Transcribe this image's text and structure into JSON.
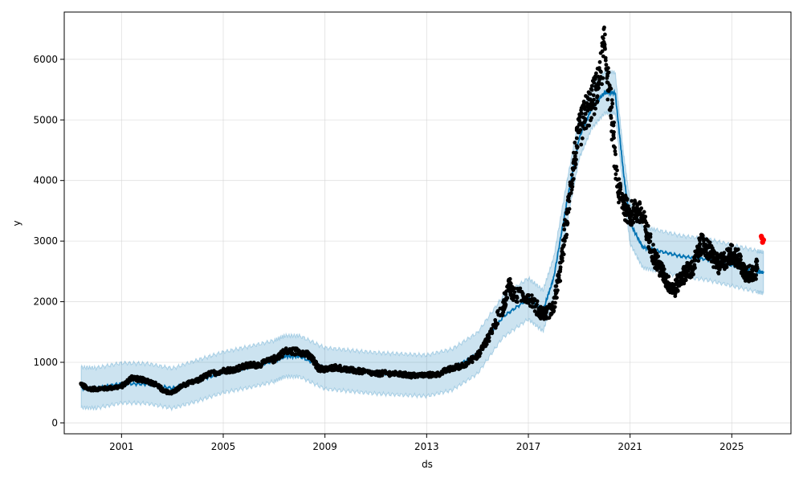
{
  "chart_data": {
    "type": "scatter",
    "title": "",
    "xlabel": "ds",
    "ylabel": "y",
    "x_axis": {
      "type": "date",
      "range": [
        "1998-10-01",
        "2027-05-01"
      ],
      "tick_values": [
        "2001-01-01",
        "2005-01-01",
        "2009-01-01",
        "2013-01-01",
        "2017-01-01",
        "2021-01-01",
        "2025-01-01"
      ],
      "tick_labels": [
        "2001",
        "2005",
        "2009",
        "2013",
        "2017",
        "2021",
        "2025"
      ]
    },
    "y_axis": {
      "range": [
        -180,
        6780
      ],
      "tick_values": [
        0,
        1000,
        2000,
        3000,
        4000,
        5000,
        6000
      ],
      "tick_labels": [
        "0",
        "1000",
        "2000",
        "3000",
        "4000",
        "5000",
        "6000"
      ]
    },
    "grid": true,
    "colors": {
      "observed": "#000000",
      "forecast_line": "#0072B2",
      "uncertainty_band": "#0072B2",
      "recent_points": "#ff0000",
      "grid": "#d3d3d3"
    },
    "series": [
      {
        "role": "observed",
        "style": "points",
        "x": [
          "1999-06-01",
          "1999-09-01",
          "2000-01-01",
          "2000-06-01",
          "2001-01-01",
          "2001-06-01",
          "2001-09-01",
          "2002-01-01",
          "2002-06-01",
          "2002-09-01",
          "2003-01-01",
          "2003-06-01",
          "2004-01-01",
          "2004-06-01",
          "2005-01-01",
          "2005-06-01",
          "2006-01-01",
          "2006-06-01",
          "2007-01-01",
          "2007-06-01",
          "2008-01-01",
          "2008-06-01",
          "2008-10-01",
          "2009-01-01",
          "2009-06-01",
          "2010-01-01",
          "2010-06-01",
          "2011-01-01",
          "2011-06-01",
          "2012-01-01",
          "2012-06-01",
          "2013-01-01",
          "2013-06-01",
          "2014-01-01",
          "2014-06-01",
          "2015-01-01",
          "2015-06-01",
          "2016-01-01",
          "2016-04-01",
          "2016-06-01",
          "2017-01-01",
          "2017-06-01",
          "2017-09-01",
          "2018-01-01",
          "2018-04-01",
          "2018-07-01",
          "2018-10-01",
          "2019-01-01",
          "2019-04-01",
          "2019-07-01",
          "2019-10-01",
          "2020-01-01",
          "2020-04-01",
          "2020-07-01",
          "2020-10-01",
          "2021-01-01",
          "2021-04-01",
          "2021-07-01",
          "2021-10-01",
          "2022-01-01",
          "2022-04-01",
          "2022-07-01",
          "2022-10-01",
          "2023-01-01",
          "2023-04-01",
          "2023-07-01",
          "2023-10-01",
          "2024-01-01",
          "2024-04-01",
          "2024-07-01",
          "2024-10-01",
          "2025-01-01",
          "2025-04-01",
          "2025-07-01",
          "2025-10-01",
          "2026-01-01"
        ],
        "y": [
          640,
          560,
          560,
          570,
          600,
          750,
          720,
          700,
          620,
          520,
          500,
          620,
          700,
          800,
          860,
          880,
          950,
          960,
          1050,
          1180,
          1180,
          1100,
          900,
          880,
          920,
          870,
          850,
          810,
          820,
          800,
          780,
          790,
          800,
          900,
          950,
          1100,
          1400,
          1900,
          2300,
          2100,
          2100,
          1850,
          1800,
          1900,
          2500,
          3300,
          4200,
          4800,
          5100,
          5300,
          5600,
          6200,
          5200,
          3900,
          3600,
          3450,
          3500,
          3400,
          3000,
          2700,
          2500,
          2300,
          2200,
          2400,
          2500,
          2550,
          2950,
          2900,
          2750,
          2600,
          2700,
          2800,
          2700,
          2500,
          2450,
          2550
        ]
      },
      {
        "role": "forecast",
        "style": "line_with_band",
        "x": [
          "1999-06-01",
          "2000-01-01",
          "2001-01-01",
          "2002-01-01",
          "2003-01-01",
          "2004-01-01",
          "2005-01-01",
          "2006-01-01",
          "2007-01-01",
          "2007-06-01",
          "2008-01-01",
          "2009-01-01",
          "2010-01-01",
          "2011-01-01",
          "2012-01-01",
          "2013-01-01",
          "2014-01-01",
          "2015-01-01",
          "2016-01-01",
          "2017-01-01",
          "2017-08-01",
          "2018-01-01",
          "2018-07-01",
          "2019-01-01",
          "2019-07-01",
          "2020-01-01",
          "2020-06-01",
          "2020-10-01",
          "2021-01-01",
          "2021-07-01",
          "2022-01-01",
          "2023-01-01",
          "2024-01-01",
          "2025-01-01",
          "2026-01-01",
          "2026-04-01"
        ],
        "yhat": [
          580,
          570,
          650,
          640,
          570,
          700,
          830,
          920,
          1020,
          1100,
          1100,
          900,
          860,
          820,
          800,
          780,
          880,
          1150,
          1750,
          2050,
          1850,
          2400,
          3600,
          4700,
          5200,
          5450,
          5450,
          4100,
          3300,
          2900,
          2850,
          2750,
          2700,
          2600,
          2500,
          2480
        ],
        "lower": [
          250,
          240,
          330,
          320,
          240,
          360,
          500,
          580,
          680,
          760,
          760,
          560,
          520,
          480,
          460,
          440,
          540,
          810,
          1410,
          1710,
          1510,
          2060,
          3260,
          4360,
          4860,
          5110,
          5110,
          3760,
          2960,
          2560,
          2510,
          2410,
          2360,
          2260,
          2160,
          2140
        ],
        "upper": [
          920,
          910,
          990,
          980,
          900,
          1040,
          1170,
          1260,
          1360,
          1440,
          1440,
          1240,
          1200,
          1160,
          1140,
          1120,
          1220,
          1490,
          2090,
          2390,
          2190,
          2740,
          3940,
          5040,
          5540,
          5790,
          5790,
          4440,
          3640,
          3240,
          3190,
          3090,
          3040,
          2940,
          2840,
          2820
        ]
      },
      {
        "role": "recent",
        "style": "points",
        "x": [
          "2026-03-01",
          "2026-03-10",
          "2026-03-20",
          "2026-04-01"
        ],
        "y": [
          3080,
          3050,
          2980,
          3020
        ]
      }
    ]
  }
}
